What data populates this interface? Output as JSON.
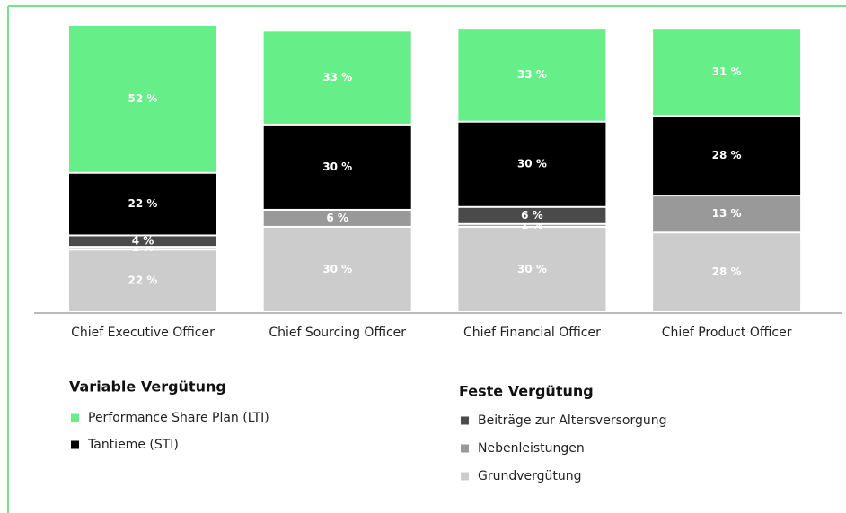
{
  "chart_data": {
    "type": "stacked_bar",
    "categories": [
      "Chief Executive Officer",
      "Chief Sourcing Officer",
      "Chief Financial Officer",
      "Chief Product Officer"
    ],
    "series": [
      {
        "name": "Grundvergütung",
        "color": "#cccccc",
        "values": [
          22,
          30,
          30,
          28
        ],
        "value_labels": [
          "22 %",
          "30 %",
          "30 %",
          "28 %"
        ]
      },
      {
        "name": "Nebenleistungen",
        "color": "#999999",
        "values": [
          1,
          6,
          1,
          13
        ],
        "value_labels": [
          "1 %",
          "6 %",
          "1 %",
          "13 %"
        ]
      },
      {
        "name": "Beiträge zur Altersversorgung",
        "color": "#4a4a4a",
        "values": [
          4,
          null,
          6,
          null
        ],
        "value_labels": [
          "4 %",
          null,
          "6 %",
          null
        ]
      },
      {
        "name": "Tantieme (STI)",
        "color": "#000000",
        "values": [
          22,
          30,
          30,
          28
        ],
        "value_labels": [
          "22 %",
          "30 %",
          "30 %",
          "28 %"
        ]
      },
      {
        "name": "Performance Share Plan (LTI)",
        "color": "#66ee88",
        "values": [
          52,
          33,
          33,
          31
        ],
        "value_labels": [
          "52 %",
          "33 %",
          "33 %",
          "31 %"
        ]
      }
    ],
    "legend_groups": [
      {
        "title": "Variable Vergütung",
        "series": [
          4,
          3
        ]
      },
      {
        "title": "Feste Vergütung",
        "series": [
          2,
          1,
          0
        ]
      }
    ]
  }
}
